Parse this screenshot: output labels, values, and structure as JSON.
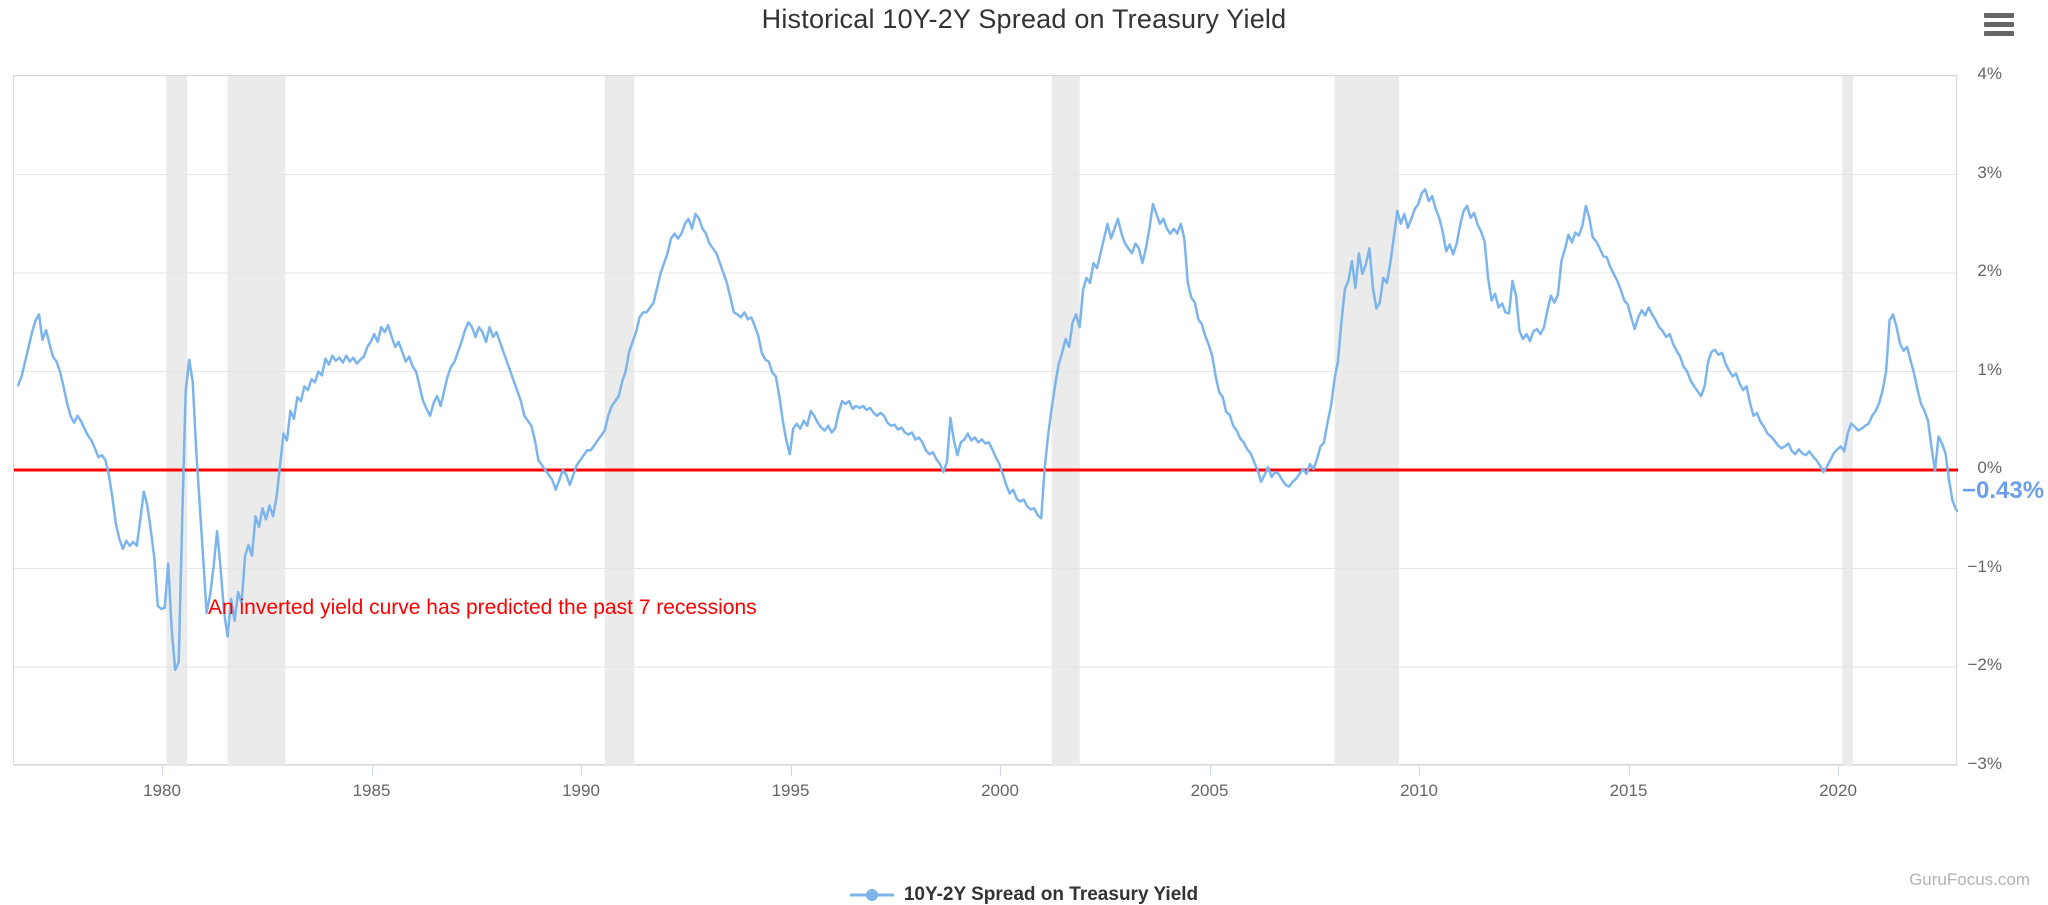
{
  "ui": {
    "watermark": "GuruFocus.com",
    "menu_icon": "hamburger-icon"
  },
  "chart_data": {
    "type": "line",
    "title": "Historical 10Y-2Y Spread on Treasury Yield",
    "xlabel": "",
    "ylabel": "",
    "grid": true,
    "x_axis": {
      "ticks": [
        1980,
        1985,
        1990,
        1995,
        2000,
        2005,
        2010,
        2015,
        2020
      ],
      "range": [
        1976.45,
        2022.9
      ]
    },
    "y_axis": {
      "position": "right",
      "range": [
        -3,
        4
      ],
      "tick_values": [
        4,
        3,
        2,
        1,
        0,
        -1,
        -2,
        -3
      ],
      "tick_labels": [
        "4%",
        "3%",
        "2%",
        "1%",
        "0%",
        "−1%",
        "−2%",
        "−3%"
      ]
    },
    "zero_line": {
      "value": 0,
      "color": "#ff0000"
    },
    "last_value_label": {
      "text": "−0.43%",
      "color": "#6d9eeb"
    },
    "annotation": {
      "text": "An inverted yield curve has predicted the past 7 recessions",
      "color": "#ff0000"
    },
    "recession_bands": {
      "color": "#ebebeb",
      "ranges": [
        [
          1980.08,
          1980.58
        ],
        [
          1981.54,
          1982.92
        ],
        [
          1990.54,
          1991.25
        ],
        [
          2001.21,
          2001.88
        ],
        [
          2007.96,
          2009.5
        ],
        [
          2020.08,
          2020.33
        ]
      ]
    },
    "legend": {
      "position": "bottom",
      "items": [
        {
          "label": "10Y-2Y Spread on Treasury Yield",
          "color": "#7cb5ec"
        }
      ]
    },
    "series": [
      {
        "name": "10Y-2Y Spread on Treasury Yield",
        "color": "#7cb5ec",
        "x_start": 1976.5417,
        "x_step_years": 0.0833333,
        "values": [
          0.86,
          0.95,
          1.1,
          1.25,
          1.4,
          1.52,
          1.58,
          1.32,
          1.42,
          1.28,
          1.15,
          1.1,
          1.0,
          0.85,
          0.68,
          0.55,
          0.48,
          0.55,
          0.5,
          0.42,
          0.35,
          0.3,
          0.22,
          0.13,
          0.15,
          0.1,
          -0.05,
          -0.28,
          -0.55,
          -0.7,
          -0.8,
          -0.72,
          -0.77,
          -0.73,
          -0.77,
          -0.5,
          -0.22,
          -0.36,
          -0.61,
          -0.89,
          -1.38,
          -1.41,
          -1.4,
          -0.95,
          -1.62,
          -2.03,
          -1.95,
          -0.5,
          0.8,
          1.12,
          0.9,
          0.2,
          -0.35,
          -0.9,
          -1.45,
          -1.27,
          -0.98,
          -0.62,
          -1.0,
          -1.44,
          -1.69,
          -1.31,
          -1.53,
          -1.24,
          -1.35,
          -0.87,
          -0.76,
          -0.87,
          -0.47,
          -0.58,
          -0.39,
          -0.5,
          -0.36,
          -0.47,
          -0.28,
          0.05,
          0.37,
          0.3,
          0.6,
          0.52,
          0.74,
          0.7,
          0.85,
          0.81,
          0.92,
          0.89,
          1.0,
          0.96,
          1.13,
          1.07,
          1.16,
          1.11,
          1.14,
          1.09,
          1.16,
          1.1,
          1.14,
          1.08,
          1.12,
          1.15,
          1.25,
          1.3,
          1.38,
          1.3,
          1.45,
          1.4,
          1.47,
          1.35,
          1.25,
          1.3,
          1.2,
          1.1,
          1.15,
          1.05,
          1.0,
          0.85,
          0.7,
          0.62,
          0.55,
          0.68,
          0.75,
          0.65,
          0.8,
          0.95,
          1.05,
          1.1,
          1.2,
          1.3,
          1.42,
          1.5,
          1.45,
          1.35,
          1.45,
          1.4,
          1.3,
          1.45,
          1.35,
          1.4,
          1.3,
          1.2,
          1.1,
          1.0,
          0.9,
          0.8,
          0.7,
          0.55,
          0.5,
          0.45,
          0.3,
          0.1,
          0.05,
          0.0,
          -0.05,
          -0.1,
          -0.2,
          -0.1,
          0.0,
          -0.05,
          -0.15,
          -0.05,
          0.05,
          0.1,
          0.15,
          0.2,
          0.2,
          0.25,
          0.3,
          0.35,
          0.4,
          0.55,
          0.65,
          0.7,
          0.75,
          0.9,
          1.0,
          1.2,
          1.3,
          1.4,
          1.55,
          1.6,
          1.6,
          1.65,
          1.7,
          1.85,
          2.0,
          2.1,
          2.2,
          2.35,
          2.4,
          2.35,
          2.4,
          2.5,
          2.55,
          2.45,
          2.6,
          2.55,
          2.45,
          2.4,
          2.3,
          2.25,
          2.2,
          2.1,
          2.0,
          1.9,
          1.75,
          1.6,
          1.58,
          1.55,
          1.6,
          1.53,
          1.55,
          1.46,
          1.36,
          1.19,
          1.12,
          1.1,
          0.99,
          0.95,
          0.75,
          0.5,
          0.3,
          0.16,
          0.42,
          0.47,
          0.42,
          0.5,
          0.45,
          0.6,
          0.55,
          0.48,
          0.43,
          0.4,
          0.45,
          0.38,
          0.42,
          0.58,
          0.7,
          0.67,
          0.7,
          0.62,
          0.65,
          0.63,
          0.65,
          0.61,
          0.63,
          0.58,
          0.55,
          0.58,
          0.55,
          0.48,
          0.45,
          0.46,
          0.41,
          0.43,
          0.38,
          0.36,
          0.38,
          0.31,
          0.33,
          0.28,
          0.2,
          0.16,
          0.18,
          0.11,
          0.06,
          -0.02,
          0.08,
          0.53,
          0.3,
          0.15,
          0.28,
          0.31,
          0.37,
          0.3,
          0.33,
          0.28,
          0.31,
          0.27,
          0.28,
          0.21,
          0.13,
          0.06,
          -0.04,
          -0.15,
          -0.24,
          -0.2,
          -0.29,
          -0.32,
          -0.3,
          -0.37,
          -0.4,
          -0.39,
          -0.46,
          -0.49,
          0.01,
          0.35,
          0.62,
          0.86,
          1.07,
          1.19,
          1.33,
          1.25,
          1.5,
          1.58,
          1.45,
          1.83,
          1.95,
          1.9,
          2.1,
          2.05,
          2.2,
          2.35,
          2.5,
          2.35,
          2.45,
          2.55,
          2.4,
          2.3,
          2.25,
          2.2,
          2.3,
          2.25,
          2.1,
          2.25,
          2.45,
          2.7,
          2.6,
          2.5,
          2.55,
          2.45,
          2.4,
          2.45,
          2.4,
          2.5,
          2.35,
          1.9,
          1.75,
          1.7,
          1.53,
          1.48,
          1.36,
          1.27,
          1.16,
          0.95,
          0.79,
          0.74,
          0.59,
          0.56,
          0.45,
          0.4,
          0.32,
          0.28,
          0.21,
          0.17,
          0.08,
          0.0,
          -0.12,
          -0.05,
          0.03,
          -0.07,
          -0.02,
          -0.04,
          -0.1,
          -0.15,
          -0.17,
          -0.12,
          -0.09,
          -0.04,
          0.01,
          -0.04,
          0.06,
          0.01,
          0.11,
          0.24,
          0.28,
          0.48,
          0.65,
          0.92,
          1.1,
          1.5,
          1.84,
          1.92,
          2.12,
          1.85,
          2.2,
          1.99,
          2.09,
          2.25,
          1.85,
          1.64,
          1.7,
          1.95,
          1.9,
          2.1,
          2.36,
          2.63,
          2.5,
          2.6,
          2.46,
          2.55,
          2.65,
          2.7,
          2.81,
          2.85,
          2.73,
          2.78,
          2.65,
          2.56,
          2.42,
          2.22,
          2.29,
          2.19,
          2.3,
          2.49,
          2.63,
          2.68,
          2.56,
          2.61,
          2.49,
          2.42,
          2.32,
          1.95,
          1.72,
          1.79,
          1.65,
          1.69,
          1.6,
          1.59,
          1.92,
          1.77,
          1.41,
          1.33,
          1.38,
          1.31,
          1.41,
          1.43,
          1.38,
          1.45,
          1.62,
          1.77,
          1.7,
          1.78,
          2.12,
          2.24,
          2.39,
          2.31,
          2.41,
          2.38,
          2.48,
          2.68,
          2.56,
          2.36,
          2.32,
          2.25,
          2.17,
          2.16,
          2.06,
          1.99,
          1.92,
          1.83,
          1.72,
          1.68,
          1.55,
          1.43,
          1.55,
          1.62,
          1.57,
          1.65,
          1.58,
          1.52,
          1.45,
          1.41,
          1.35,
          1.38,
          1.28,
          1.21,
          1.15,
          1.05,
          1.0,
          0.91,
          0.85,
          0.8,
          0.75,
          0.85,
          1.1,
          1.2,
          1.22,
          1.17,
          1.19,
          1.08,
          1.01,
          0.95,
          0.98,
          0.88,
          0.81,
          0.85,
          0.68,
          0.55,
          0.58,
          0.49,
          0.44,
          0.37,
          0.34,
          0.3,
          0.25,
          0.22,
          0.24,
          0.27,
          0.19,
          0.16,
          0.21,
          0.17,
          0.15,
          0.19,
          0.14,
          0.1,
          0.05,
          -0.02,
          0.03,
          0.1,
          0.17,
          0.21,
          0.24,
          0.19,
          0.37,
          0.47,
          0.44,
          0.4,
          0.42,
          0.45,
          0.47,
          0.55,
          0.6,
          0.68,
          0.81,
          1.0,
          1.52,
          1.58,
          1.45,
          1.28,
          1.21,
          1.25,
          1.11,
          0.98,
          0.81,
          0.67,
          0.6,
          0.5,
          0.23,
          -0.01,
          0.34,
          0.27,
          0.17,
          -0.1,
          -0.31,
          -0.4,
          -0.43
        ]
      }
    ]
  }
}
